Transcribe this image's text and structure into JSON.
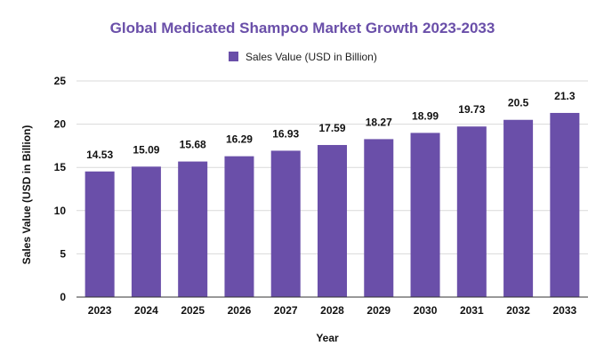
{
  "chart_data": {
    "type": "bar",
    "title": "Global Medicated Shampoo Market Growth 2023-2033",
    "xlabel": "Year",
    "ylabel": "Sales Value (USD in Billion)",
    "categories": [
      "2023",
      "2024",
      "2025",
      "2026",
      "2027",
      "2028",
      "2029",
      "2030",
      "2031",
      "2032",
      "2033"
    ],
    "series": [
      {
        "name": "Sales Value (USD in Billion)",
        "values": [
          14.53,
          15.09,
          15.68,
          16.29,
          16.93,
          17.59,
          18.27,
          18.99,
          19.73,
          20.5,
          21.3
        ],
        "labels": [
          "14.53",
          "15.09",
          "15.68",
          "16.29",
          "16.93",
          "17.59",
          "18.27",
          "18.99",
          "19.73",
          "20.5",
          "21.3"
        ]
      }
    ],
    "ylim": [
      0,
      25
    ],
    "yticks": [
      "0",
      "5",
      "10",
      "15",
      "20",
      "25"
    ],
    "grid": true,
    "legend_position": "top-center",
    "colors": {
      "title": "#6a4fa9",
      "bar": "#6a4fa9",
      "grid": "#d9d9d9",
      "axis": "#333333",
      "text": "#111111"
    }
  }
}
